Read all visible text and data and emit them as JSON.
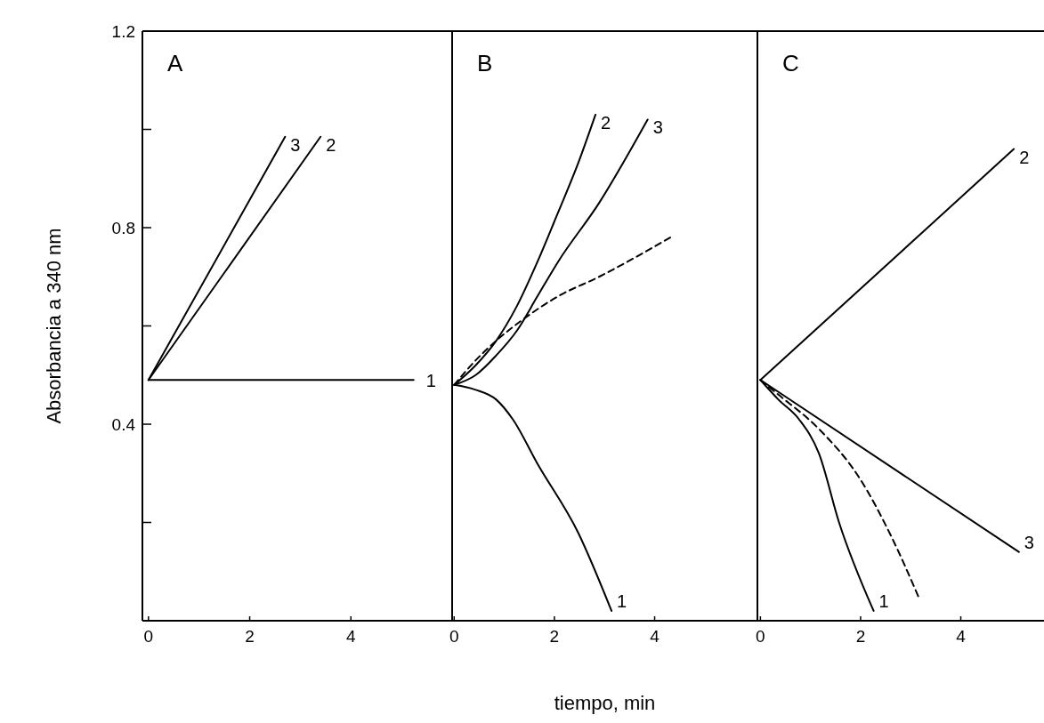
{
  "chart_data": [
    {
      "type": "line",
      "title": "A",
      "ylabel": "Absorbancia a 340 nm",
      "xlim": [
        -0.12,
        6
      ],
      "ylim": [
        0,
        1.2
      ],
      "xticks": [
        0,
        2,
        4
      ],
      "yticks": [
        {
          "value": 0.2,
          "label": null
        },
        0.4,
        {
          "value": 0.6,
          "label": null
        },
        0.8,
        {
          "value": 1.0,
          "label": null
        },
        1.2
      ],
      "grid": false,
      "marker": "none",
      "series": [
        {
          "name": "1",
          "color": "#000000",
          "line_style": "solid",
          "x": [
            0,
            5.24
          ],
          "values": [
            0.49,
            0.49
          ]
        },
        {
          "name": "2",
          "color": "#000000",
          "line_style": "solid",
          "x": [
            0,
            3.4
          ],
          "values": [
            0.49,
            0.985
          ]
        },
        {
          "name": "3",
          "color": "#000000",
          "line_style": "solid",
          "x": [
            0,
            2.7
          ],
          "values": [
            0.49,
            0.985
          ]
        }
      ]
    },
    {
      "type": "line",
      "title": "B",
      "xlabel": "tiempo, min",
      "xlim": [
        -0.04,
        6.05
      ],
      "ylim": [
        0,
        1.2
      ],
      "xticks": [
        0,
        2,
        4
      ],
      "tick_labels": "x",
      "grid": false,
      "marker": "none",
      "series": [
        {
          "name": "1",
          "color": "#000000",
          "line_style": "solid",
          "x": [
            0,
            0.43,
            0.84,
            1.17,
            1.66,
            2.47,
            3.14
          ],
          "values": [
            0.48,
            0.47,
            0.45,
            0.41,
            0.32,
            0.18,
            0.02
          ]
        },
        {
          "name": "2",
          "color": "#000000",
          "line_style": "solid",
          "x": [
            0,
            0.43,
            0.84,
            1.25,
            1.66,
            2.07,
            2.47,
            2.82
          ],
          "values": [
            0.48,
            0.52,
            0.57,
            0.64,
            0.73,
            0.83,
            0.93,
            1.03
          ]
        },
        {
          "name": "3",
          "color": "#000000",
          "line_style": "solid",
          "x": [
            0,
            0.43,
            0.84,
            1.25,
            1.66,
            2.07,
            2.89,
            3.86
          ],
          "values": [
            0.48,
            0.5,
            0.54,
            0.59,
            0.66,
            0.73,
            0.85,
            1.02
          ]
        },
        {
          "color": "#000000",
          "line_style": "dashed",
          "x": [
            0,
            0.43,
            0.84,
            1.33,
            2.07,
            2.89,
            4.31
          ],
          "values": [
            0.48,
            0.53,
            0.57,
            0.61,
            0.66,
            0.7,
            0.78
          ]
        }
      ]
    },
    {
      "type": "line",
      "title": "C",
      "xlim": [
        -0.06,
        5.75
      ],
      "ylim": [
        0,
        1.2
      ],
      "xticks": [
        0,
        2,
        4
      ],
      "tick_labels": "x",
      "grid": false,
      "marker": "none",
      "series": [
        {
          "name": "1",
          "color": "#000000",
          "line_style": "solid",
          "x": [
            0,
            0.36,
            0.77,
            1.17,
            1.57,
            2.26
          ],
          "values": [
            0.49,
            0.45,
            0.41,
            0.34,
            0.2,
            0.02
          ]
        },
        {
          "name": "2",
          "color": "#000000",
          "line_style": "solid",
          "x": [
            0,
            5.06
          ],
          "values": [
            0.49,
            0.96
          ]
        },
        {
          "name": "3",
          "color": "#000000",
          "line_style": "solid",
          "x": [
            0,
            5.16
          ],
          "values": [
            0.49,
            0.14
          ]
        },
        {
          "color": "#000000",
          "line_style": "dashed",
          "x": [
            0,
            0.36,
            1.17,
            1.98,
            2.62,
            3.15
          ],
          "values": [
            0.49,
            0.46,
            0.39,
            0.29,
            0.17,
            0.05
          ]
        }
      ]
    }
  ]
}
